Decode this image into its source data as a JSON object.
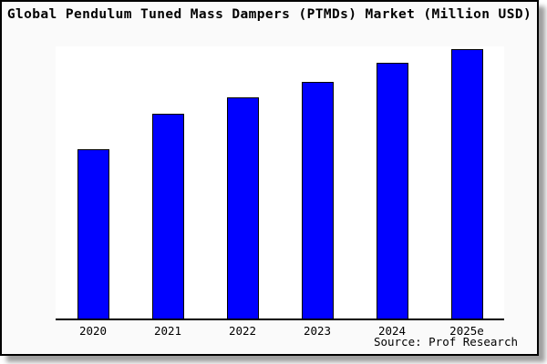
{
  "title": "Global Pendulum Tuned Mass Dampers (PTMDs) Market (Million USD)",
  "source": "Source: Prof Research",
  "colors": {
    "bar": "#0000ff",
    "bar_border": "#000000",
    "card_background": "#fafafa",
    "plot_background": "#ffffff",
    "frame": "#000000"
  },
  "chart_data": {
    "type": "bar",
    "categories": [
      "2020",
      "2021",
      "2022",
      "2023",
      "2024",
      "2025e"
    ],
    "values": [
      63,
      76,
      82,
      88,
      95,
      100
    ],
    "title": "Global Pendulum Tuned Mass Dampers (PTMDs) Market (Million USD)",
    "xlabel": "",
    "ylabel": "",
    "ylim": [
      0,
      101
    ],
    "grid": false,
    "legend": false,
    "axis_note": "no y-axis ticks or value labels shown; values are relative bar heights indexed to 2025e = 100",
    "bar_color": "#0000ff",
    "bar_edge_color": "#000000"
  }
}
